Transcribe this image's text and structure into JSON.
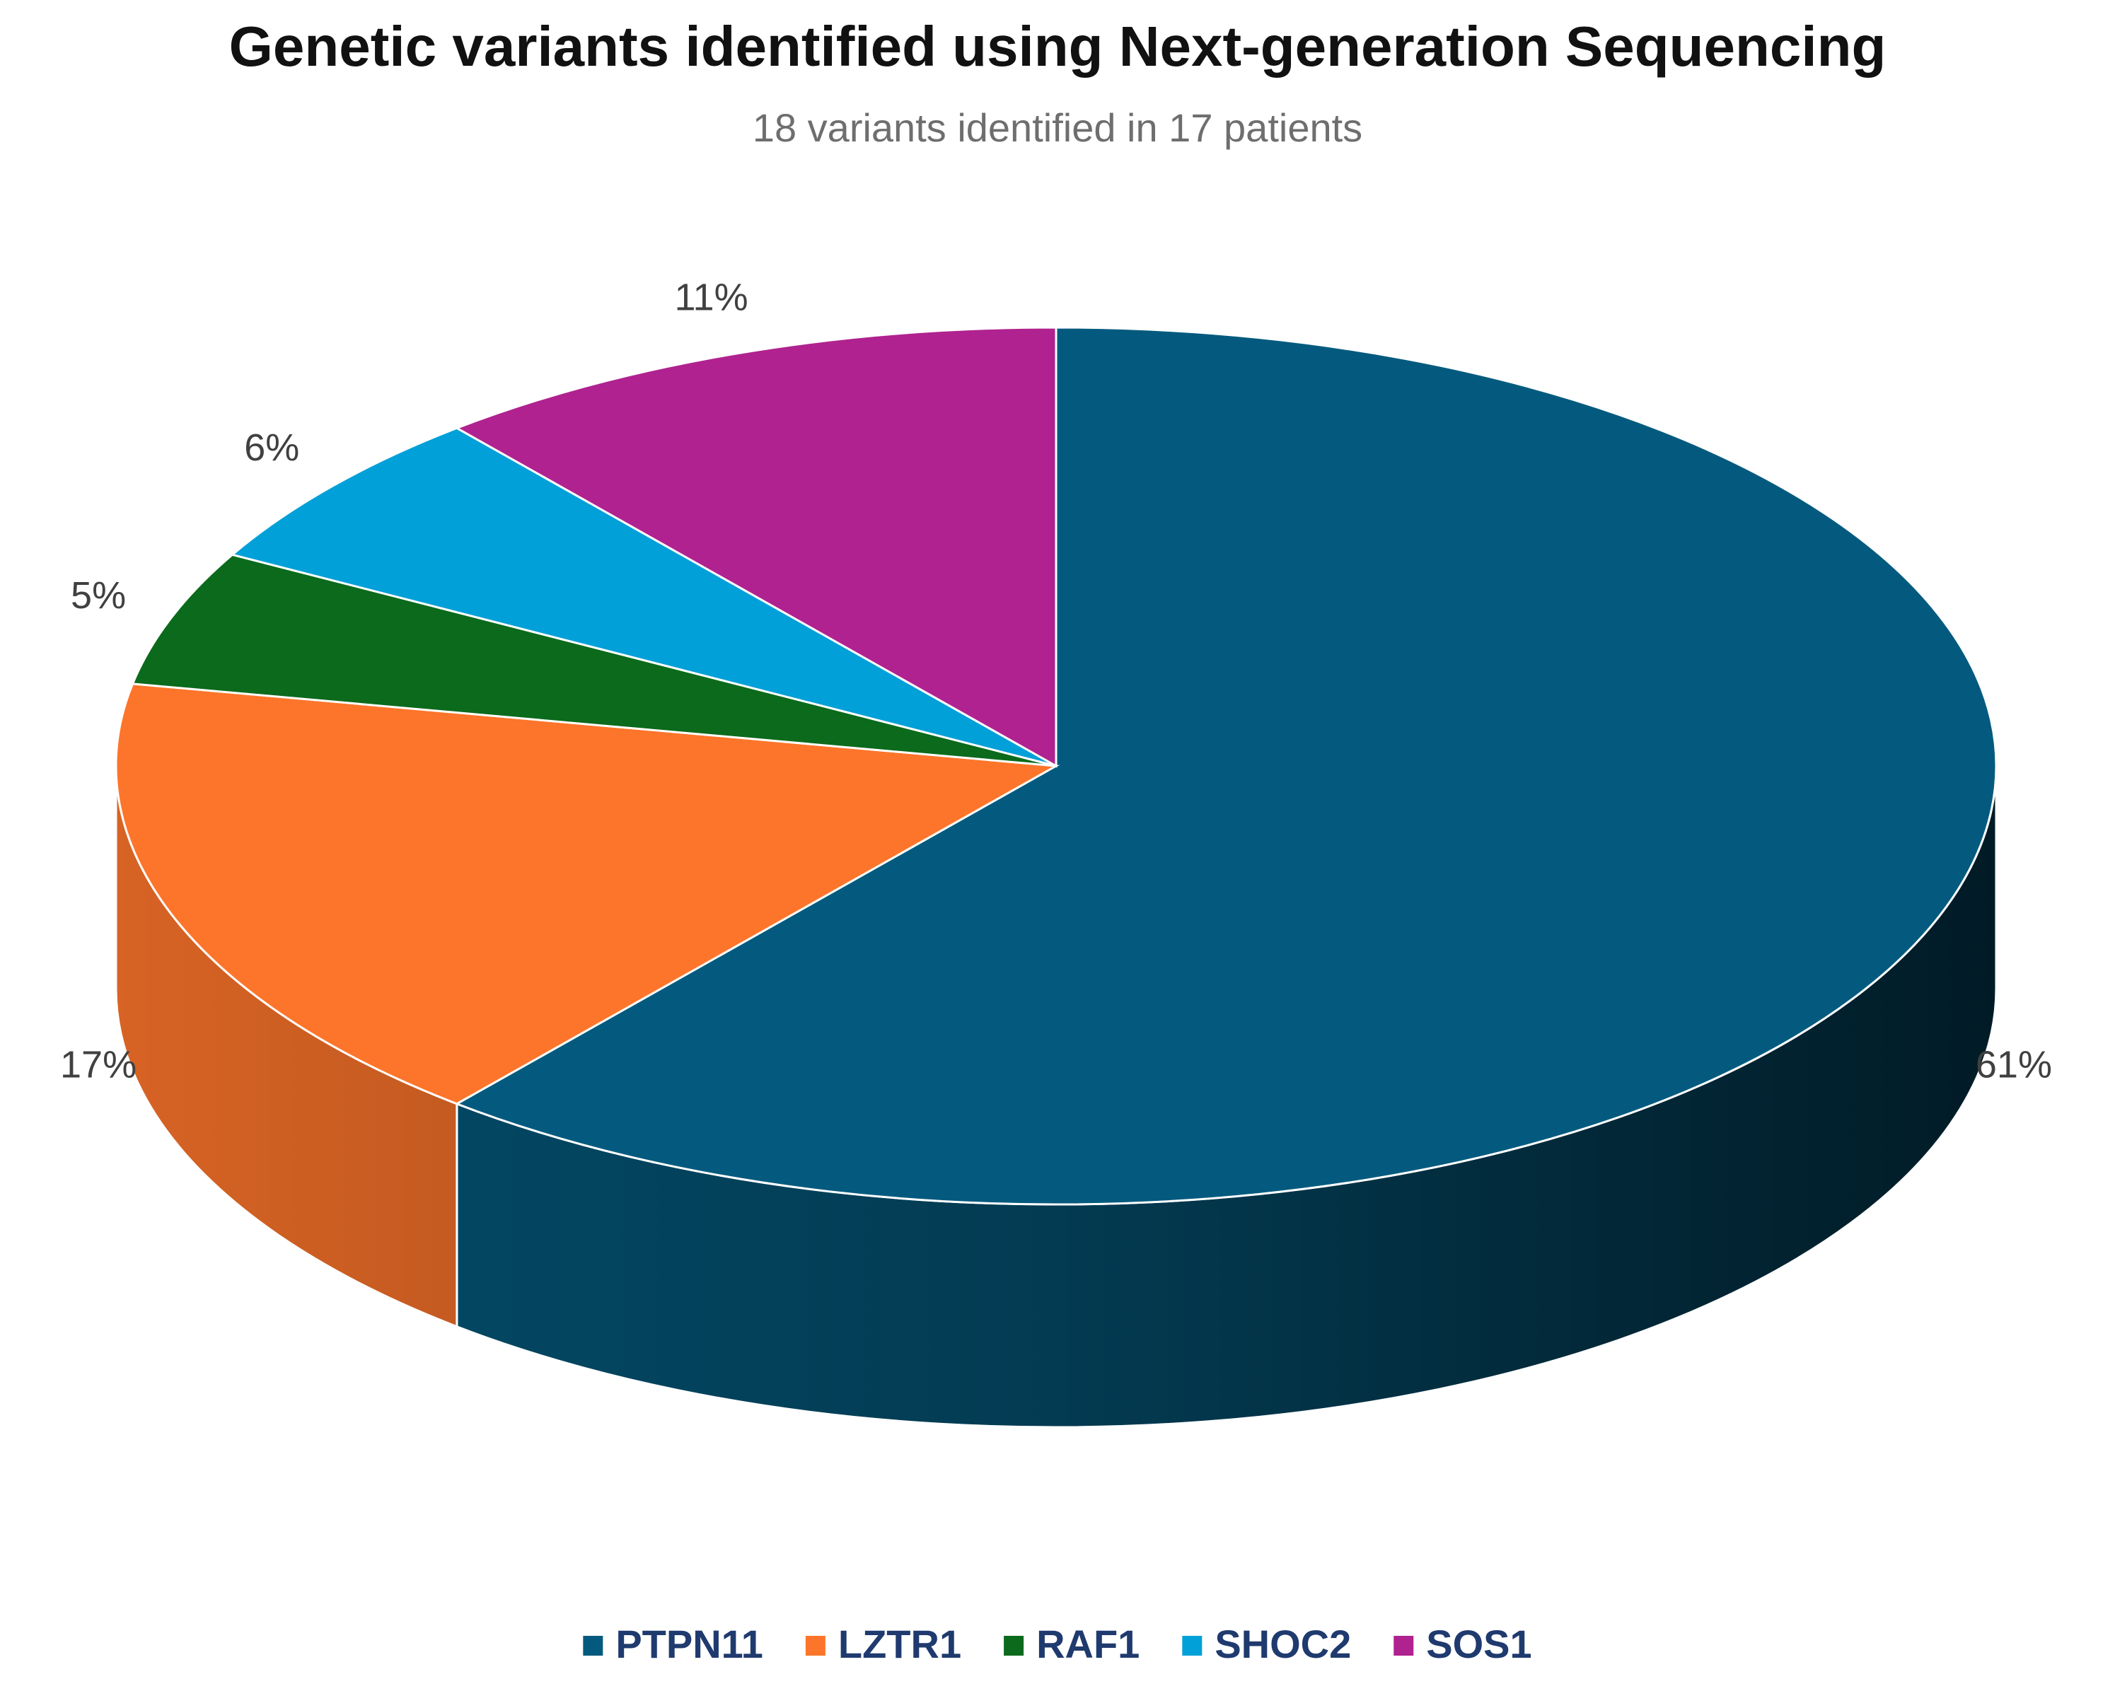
{
  "chart_data": {
    "type": "pie3d",
    "title": "Genetic variants identified using Next-generation Sequencing",
    "subtitle": "18 variants identified in 17  patients",
    "categories": [
      "PTPN11",
      "LZTR1",
      "RAF1",
      "SHOC2",
      "SOS1"
    ],
    "values": [
      61,
      17,
      5,
      6,
      11
    ],
    "value_labels": [
      "61%",
      "17%",
      "5%",
      "6%",
      "11%"
    ],
    "colors": [
      "#045a7e",
      "#fd752a",
      "#0b6a1c",
      "#02a0d8",
      "#b0228f"
    ],
    "legend": "bottom"
  }
}
